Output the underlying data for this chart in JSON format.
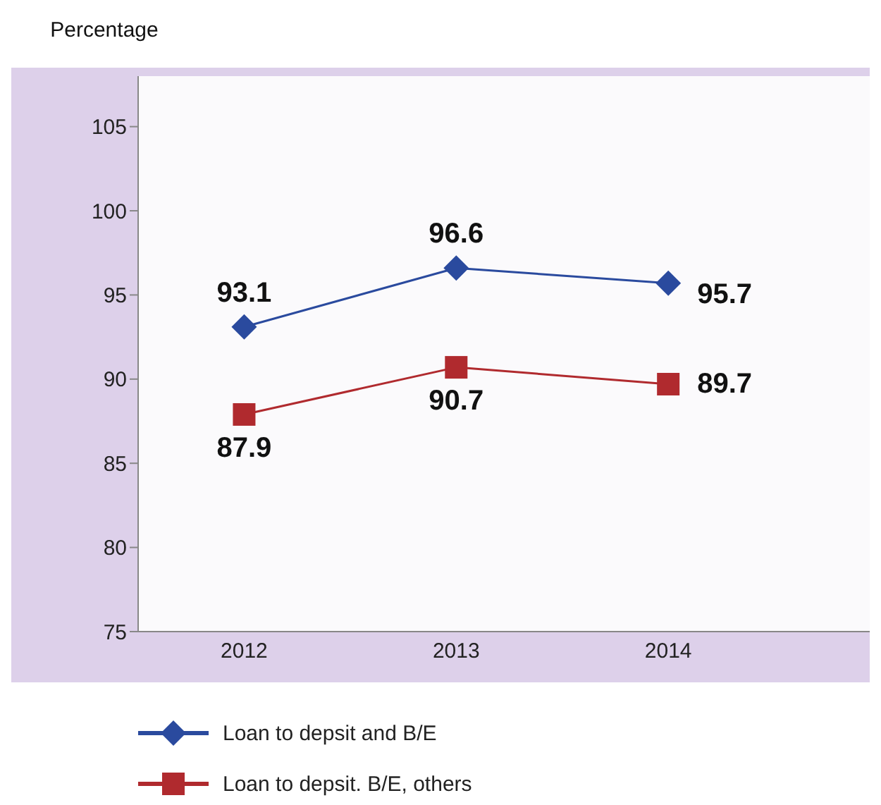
{
  "chart_data": {
    "type": "line",
    "ylabel": "Percentage",
    "categories": [
      "2012",
      "2013",
      "2014"
    ],
    "series": [
      {
        "name": "Loan to depsit and B/E",
        "color": "#2a4a9e",
        "marker": "diamond",
        "values": [
          93.1,
          96.6,
          95.7
        ]
      },
      {
        "name": "Loan to depsit. B/E, others",
        "color": "#b02a2e",
        "marker": "square",
        "values": [
          87.9,
          90.7,
          89.7
        ]
      }
    ],
    "ylim": [
      75,
      108
    ],
    "yticks": [
      75,
      80,
      85,
      90,
      95,
      100,
      105
    ],
    "data_labels": true,
    "legend": "bottom",
    "grid": false
  }
}
